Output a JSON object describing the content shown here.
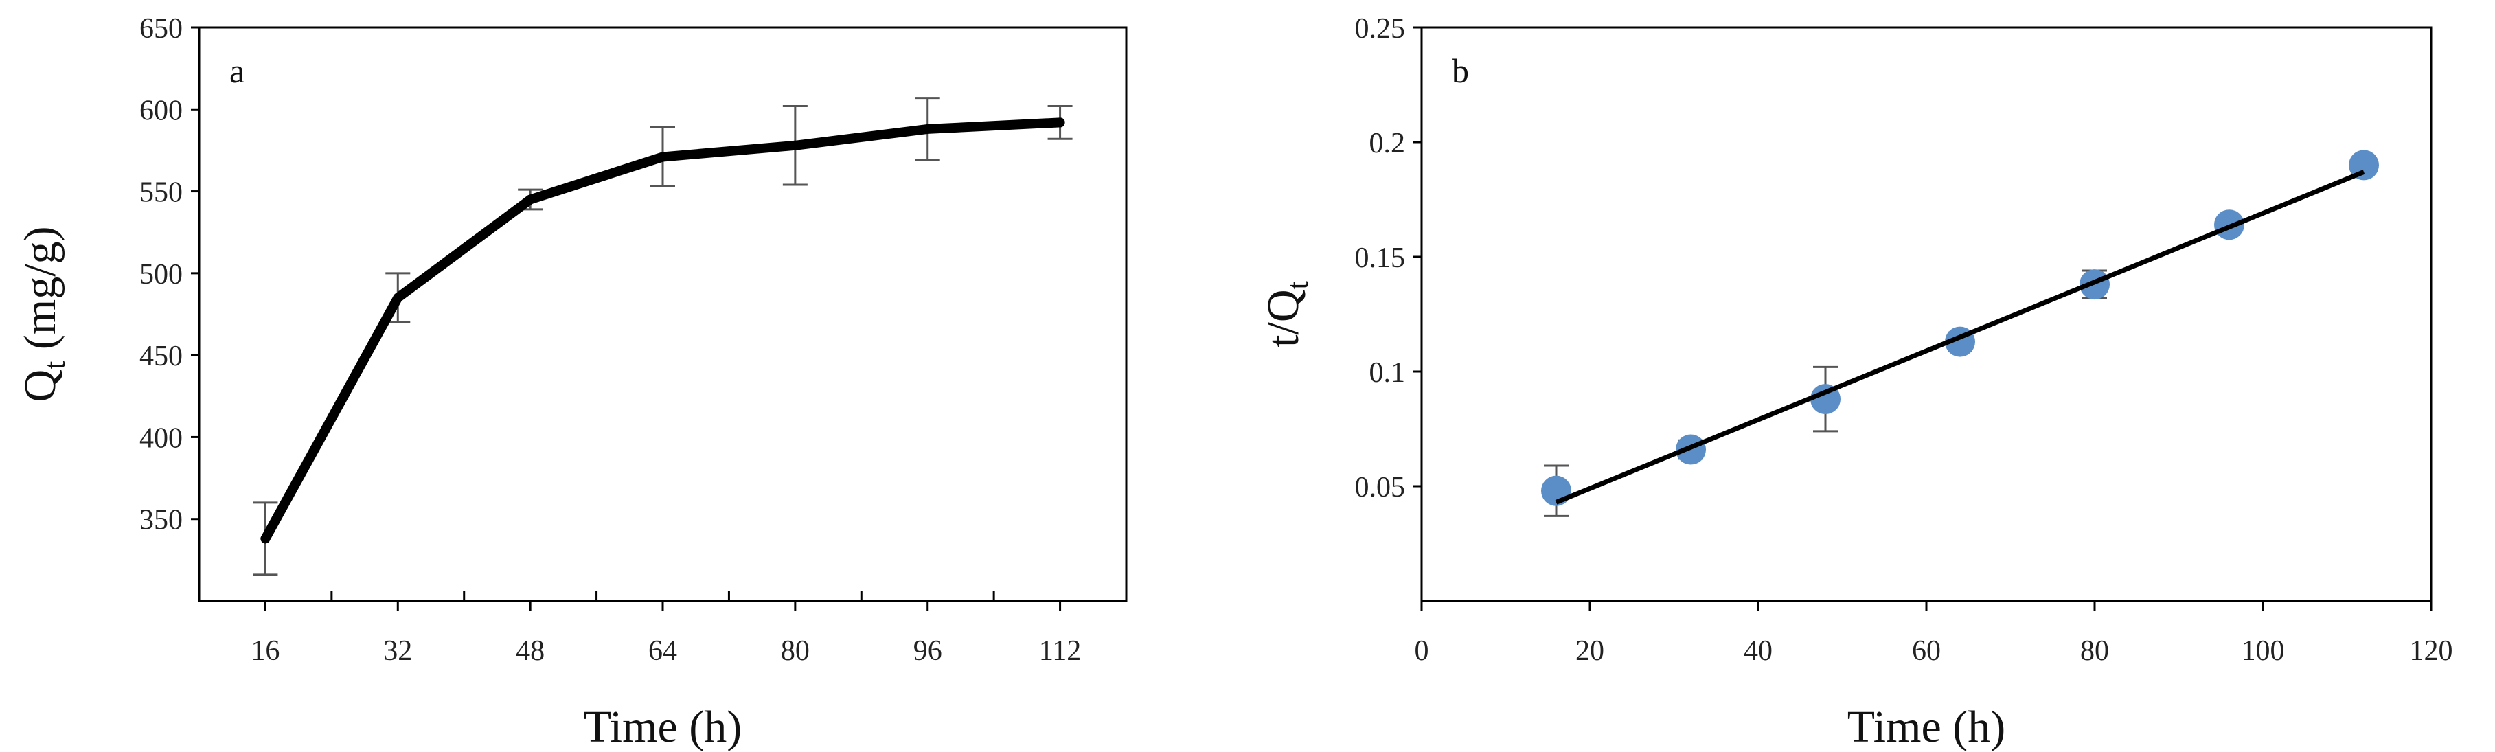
{
  "chart_data": [
    {
      "type": "line",
      "panel_label": "a",
      "xlabel": "Time (h)",
      "ylabel": "Q",
      "ylabel_sub": "t",
      "ylabel_unit": " (mg/g)",
      "xlim": [
        8,
        120
      ],
      "ylim": [
        300,
        650
      ],
      "x_major_ticks": [
        16,
        32,
        48,
        64,
        80,
        96,
        112
      ],
      "x_minor_ticks": [
        24,
        40,
        56,
        72,
        88,
        104
      ],
      "y_ticks": [
        350,
        400,
        450,
        500,
        550,
        600,
        650
      ],
      "grid": false,
      "line_color": "#000000",
      "series": [
        {
          "x": [
            16,
            32,
            48,
            64,
            80,
            96,
            112
          ],
          "y": [
            338,
            485,
            545,
            571,
            578,
            588,
            592
          ],
          "error": [
            22,
            15,
            6,
            18,
            24,
            19,
            10
          ]
        }
      ]
    },
    {
      "type": "scatter",
      "panel_label": "b",
      "xlabel": "Time (h)",
      "ylabel": "t/Q",
      "ylabel_sub": "t",
      "xlim": [
        0,
        120
      ],
      "ylim": [
        0,
        0.25
      ],
      "x_ticks": [
        0,
        20,
        40,
        60,
        80,
        100,
        120
      ],
      "y_ticks": [
        0.05,
        0.1,
        0.15,
        0.2,
        0.25
      ],
      "grid": false,
      "marker_color": "#5b8ec7",
      "line_color": "#000000",
      "series": [
        {
          "x": [
            16,
            32,
            48,
            64,
            80,
            96,
            112
          ],
          "y": [
            0.048,
            0.066,
            0.088,
            0.113,
            0.138,
            0.164,
            0.19
          ],
          "error": [
            0.011,
            0.004,
            0.014,
            0.004,
            0.006,
            0.003,
            0.003
          ]
        }
      ],
      "trendline": {
        "x": [
          16,
          112
        ],
        "y": [
          0.043,
          0.187
        ]
      }
    }
  ]
}
